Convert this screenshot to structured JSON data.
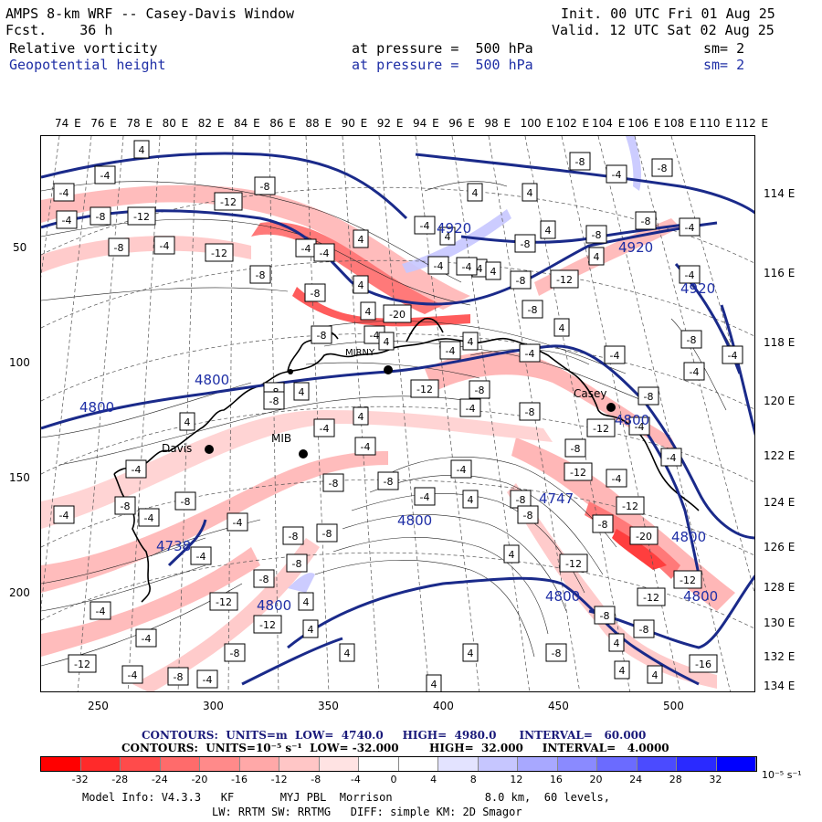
{
  "header": {
    "line1_left": "AMPS 8-km WRF -- Casey-Davis Window",
    "line1_right": "Init. 00 UTC Fri 01 Aug 25",
    "line2_left": "Fcst.    36 h",
    "line2_right": "Valid. 12 UTC Sat 02 Aug 25",
    "field1": "Relative vorticity",
    "field1_level": "at pressure =  500 hPa",
    "field1_sm": "sm= 2",
    "field2": "Geopotential height",
    "field2_level": "at pressure =  500 hPa",
    "field2_sm": "sm= 2"
  },
  "axes": {
    "top_longitudes": [
      "74 E",
      "76 E",
      "78 E",
      "80 E",
      "82 E",
      "84 E",
      "86 E",
      "88 E",
      "90 E",
      "92 E",
      "94 E",
      "96 E",
      "98 E",
      "100 E",
      "102 E",
      "104 E",
      "106 E",
      "108 E",
      "110 E",
      "112 E"
    ],
    "right_longitudes": [
      "114 E",
      "116 E",
      "118 E",
      "120 E",
      "122 E",
      "124 E",
      "126 E",
      "128 E",
      "130 E",
      "132 E",
      "134 E"
    ],
    "left_ticks": [
      "50",
      "100",
      "150",
      "200"
    ],
    "bottom_ticks": [
      "250",
      "300",
      "350",
      "400",
      "450",
      "500"
    ]
  },
  "stations": [
    "Davis",
    "MIB",
    "MIRNY",
    "Casey"
  ],
  "height_labels": [
    "4920",
    "4920",
    "4920",
    "4800",
    "4800",
    "4800",
    "4800",
    "4800",
    "4800",
    "4800",
    "4800",
    "4738",
    "4747"
  ],
  "legend": {
    "contours1": "CONTOURS:  UNITS=m  LOW=  4740.0     HIGH=  4980.0      INTERVAL=   60.000",
    "contours2": "CONTOURS:  UNITS=10⁻⁵ s⁻¹  LOW= -32.000        HIGH=  32.000     INTERVAL=   4.0000",
    "colorbar_labels": [
      "-32",
      "-28",
      "-24",
      "-20",
      "-16",
      "-12",
      "-8",
      "-4",
      "0",
      "4",
      "8",
      "12",
      "16",
      "20",
      "24",
      "28",
      "32"
    ],
    "colorbar_unit": "10⁻⁵ s⁻¹",
    "colors": [
      "#ff0000",
      "#ff2a2a",
      "#ff4b4b",
      "#ff6b6b",
      "#ff8a8a",
      "#ffa8a8",
      "#ffc6c6",
      "#ffe3e3",
      "#ffffff",
      "#ffffff",
      "#e3e3ff",
      "#c6c6ff",
      "#a8a8ff",
      "#8a8aff",
      "#6b6bff",
      "#4b4bff",
      "#2a2aff",
      "#0000ff"
    ]
  },
  "model_info": {
    "line1": "Model Info: V4.3.3   KF       MYJ PBL  Morrison              8.0 km,  60 levels,",
    "line2": "LW: RRTM SW: RRTMG   DIFF: simple KM: 2D Smagor"
  }
}
